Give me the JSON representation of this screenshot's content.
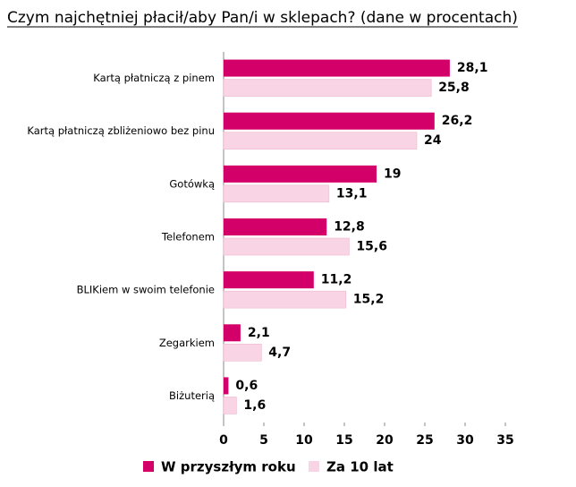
{
  "chart_data": {
    "type": "barh",
    "title": "Czym najchętniej płacił/aby Pan/i w sklepach? (dane w procentach)",
    "categories": [
      "Kartą płatniczą z pinem",
      "Kartą płatniczą zbliżeniowo bez pinu",
      "Gotówką",
      "Telefonem",
      "BLIKiem w swoim telefonie",
      "Zegarkiem",
      "Biżuterią"
    ],
    "series": [
      {
        "name": "W przyszłym roku",
        "color": "#d4006a",
        "values": [
          28.1,
          26.2,
          19,
          12.8,
          11.2,
          2.1,
          0.6
        ],
        "value_labels": [
          "28,1",
          "26,2",
          "19",
          "12,8",
          "11,2",
          "2,1",
          "0,6"
        ]
      },
      {
        "name": "Za 10 lat",
        "color": "#f8d4e4",
        "values": [
          25.8,
          24,
          13.1,
          15.6,
          15.2,
          4.7,
          1.6
        ],
        "value_labels": [
          "25,8",
          "24",
          "13,1",
          "15,6",
          "15,2",
          "4,7",
          "1,6"
        ]
      }
    ],
    "xlim": [
      0,
      35
    ],
    "xticks": [
      0,
      5,
      10,
      15,
      20,
      25,
      30,
      35
    ],
    "legend": "bottom"
  }
}
